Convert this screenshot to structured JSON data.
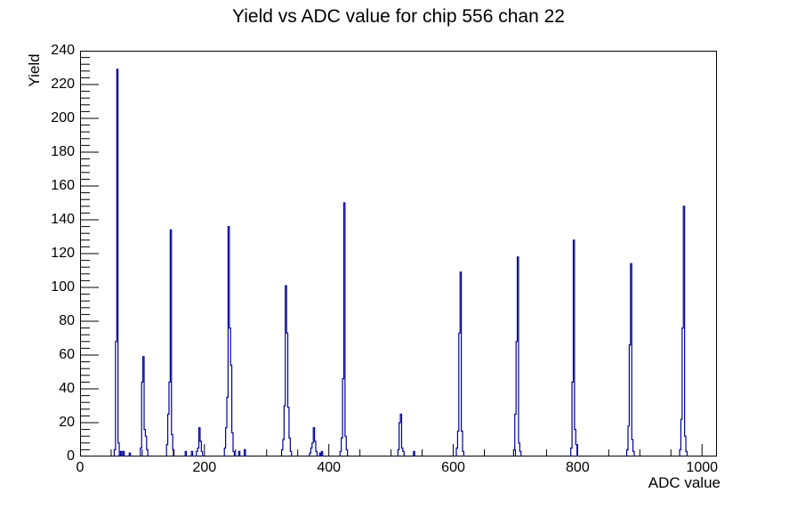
{
  "page": {
    "background_color": "#ffffff",
    "text_color": "#000000"
  },
  "chart_data": {
    "type": "bar",
    "title": "Yield vs ADC value for chip 556 chan 22",
    "xlabel": "ADC value",
    "ylabel": "Yield",
    "xlim": [
      0,
      1024
    ],
    "ylim": [
      0,
      240
    ],
    "grid": false,
    "legend": "none",
    "line_color": "#000099",
    "axis_color": "#000000",
    "x_tick_labels": [
      "0",
      "200",
      "400",
      "600",
      "800",
      "1000"
    ],
    "x_label_values": [
      0,
      200,
      400,
      600,
      800,
      1000
    ],
    "x_minor_tick_step": 50,
    "x_major_tick_step": 200,
    "y_tick_labels": [
      "0",
      "20",
      "40",
      "60",
      "80",
      "100",
      "120",
      "140",
      "160",
      "180",
      "200",
      "220",
      "240"
    ],
    "y_label_values": [
      0,
      20,
      40,
      60,
      80,
      100,
      120,
      140,
      160,
      180,
      200,
      220,
      240
    ],
    "y_minor_tick_step": 4,
    "y_major_tick_step": 20,
    "bin_width": 2,
    "bins": [
      [
        56,
        4
      ],
      [
        58,
        68
      ],
      [
        60,
        229
      ],
      [
        62,
        8
      ],
      [
        66,
        3
      ],
      [
        70,
        3
      ],
      [
        80,
        2
      ],
      [
        98,
        5
      ],
      [
        100,
        44
      ],
      [
        102,
        59
      ],
      [
        104,
        16
      ],
      [
        106,
        12
      ],
      [
        108,
        4
      ],
      [
        140,
        7
      ],
      [
        142,
        25
      ],
      [
        144,
        44
      ],
      [
        146,
        134
      ],
      [
        148,
        13
      ],
      [
        150,
        4
      ],
      [
        170,
        3
      ],
      [
        180,
        3
      ],
      [
        188,
        3
      ],
      [
        190,
        5
      ],
      [
        192,
        17
      ],
      [
        194,
        9
      ],
      [
        196,
        3
      ],
      [
        233,
        5
      ],
      [
        235,
        17
      ],
      [
        237,
        35
      ],
      [
        239,
        136
      ],
      [
        241,
        76
      ],
      [
        243,
        54
      ],
      [
        245,
        14
      ],
      [
        247,
        3
      ],
      [
        256,
        3
      ],
      [
        265,
        4
      ],
      [
        325,
        4
      ],
      [
        327,
        10
      ],
      [
        329,
        30
      ],
      [
        331,
        101
      ],
      [
        333,
        73
      ],
      [
        335,
        29
      ],
      [
        337,
        11
      ],
      [
        339,
        3
      ],
      [
        370,
        2
      ],
      [
        372,
        5
      ],
      [
        374,
        8
      ],
      [
        376,
        17
      ],
      [
        378,
        9
      ],
      [
        380,
        3
      ],
      [
        386,
        2
      ],
      [
        389,
        3
      ],
      [
        419,
        3
      ],
      [
        421,
        11
      ],
      [
        423,
        46
      ],
      [
        425,
        150
      ],
      [
        427,
        12
      ],
      [
        429,
        4
      ],
      [
        512,
        4
      ],
      [
        514,
        20
      ],
      [
        516,
        25
      ],
      [
        518,
        5
      ],
      [
        520,
        3
      ],
      [
        537,
        3
      ],
      [
        606,
        5
      ],
      [
        608,
        15
      ],
      [
        610,
        73
      ],
      [
        612,
        109
      ],
      [
        614,
        15
      ],
      [
        616,
        3
      ],
      [
        698,
        4
      ],
      [
        700,
        25
      ],
      [
        702,
        68
      ],
      [
        704,
        118
      ],
      [
        706,
        8
      ],
      [
        708,
        3
      ],
      [
        790,
        5
      ],
      [
        792,
        44
      ],
      [
        794,
        128
      ],
      [
        796,
        16
      ],
      [
        798,
        7
      ],
      [
        880,
        4
      ],
      [
        882,
        18
      ],
      [
        884,
        66
      ],
      [
        886,
        114
      ],
      [
        888,
        10
      ],
      [
        890,
        3
      ],
      [
        965,
        4
      ],
      [
        967,
        22
      ],
      [
        969,
        76
      ],
      [
        971,
        148
      ],
      [
        973,
        12
      ],
      [
        975,
        3
      ]
    ]
  }
}
